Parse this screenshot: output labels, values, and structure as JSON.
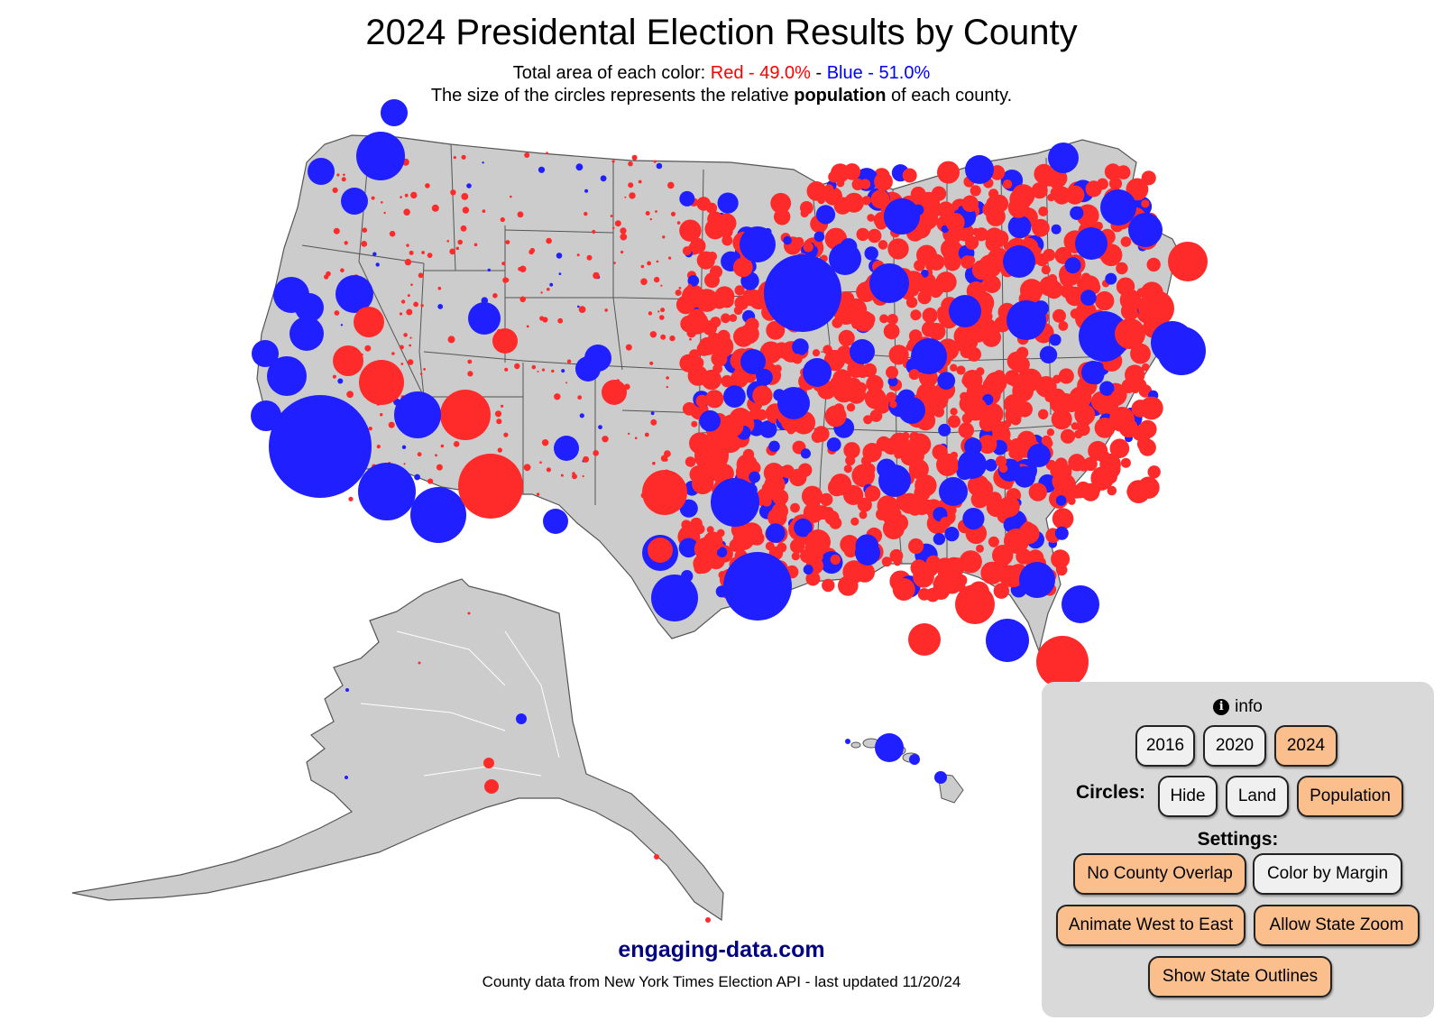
{
  "header": {
    "title": "2024 Presidental Election Results by County",
    "area_prefix": "Total area of each color: ",
    "area_red": "Red - 49.0%",
    "area_sep": " - ",
    "area_blue": "Blue - 51.0%",
    "size_prefix": "The size of the circles represents the relative ",
    "size_bold": "population",
    "size_suffix": " of each county."
  },
  "colors": {
    "red": "#ff2a2a",
    "blue": "#1f1fff",
    "land": "#cccccc",
    "border": "#555555",
    "panel": "#d9d9d9",
    "active_button": "#fbbf8e",
    "inactive_button": "#f0f0f0"
  },
  "controls": {
    "info_label": "info",
    "years": [
      "2016",
      "2020",
      "2024"
    ],
    "selected_year": "2024",
    "circles_label": "Circles:",
    "circle_modes": [
      "Hide",
      "Land",
      "Population"
    ],
    "selected_circle_mode": "Population",
    "settings_label": "Settings:",
    "settings": {
      "no_county_overlap": {
        "label": "No County Overlap",
        "on": true
      },
      "color_by_margin": {
        "label": "Color by Margin",
        "on": false
      },
      "animate_west_to_east": {
        "label": "Animate West to East",
        "on": true
      },
      "allow_state_zoom": {
        "label": "Allow State Zoom",
        "on": true
      },
      "show_state_outlines": {
        "label": "Show State Outlines",
        "on": true
      }
    }
  },
  "footer": {
    "site": "engaging-data.com",
    "note": "County data from New York Times Election API - last updated 11/20/24"
  }
}
